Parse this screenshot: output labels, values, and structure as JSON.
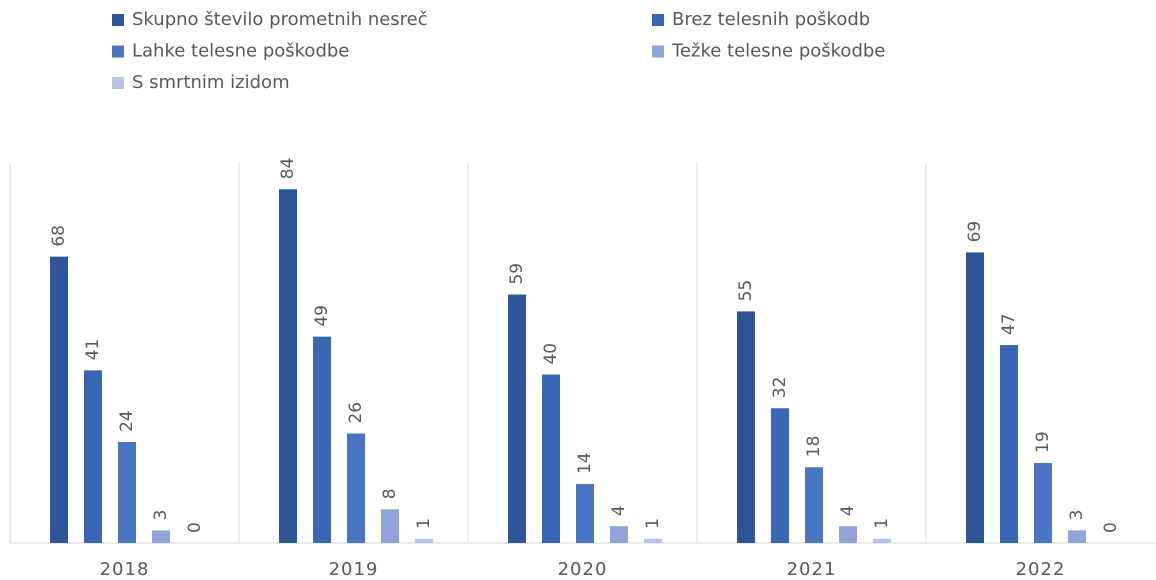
{
  "chart_data": {
    "type": "bar",
    "categories": [
      "2018",
      "2019",
      "2020",
      "2021",
      "2022"
    ],
    "series": [
      {
        "name": "Skupno število prometnih nesreč",
        "color": "#2e5597",
        "values": [
          68,
          84,
          59,
          55,
          69
        ]
      },
      {
        "name": "Brez telesnih poškodb",
        "color": "#3a66b6",
        "values": [
          41,
          49,
          40,
          32,
          47
        ]
      },
      {
        "name": "Lahke telesne poškodbe",
        "color": "#4a74c4",
        "values": [
          24,
          26,
          14,
          18,
          19
        ]
      },
      {
        "name": "Težke telesne poškodbe",
        "color": "#8fa4d9",
        "values": [
          3,
          8,
          4,
          4,
          3
        ]
      },
      {
        "name": "S smrtnim izidom",
        "color": "#b6c4e8",
        "values": [
          0,
          1,
          1,
          1,
          0
        ]
      }
    ],
    "ylim": [
      0,
      90
    ]
  }
}
